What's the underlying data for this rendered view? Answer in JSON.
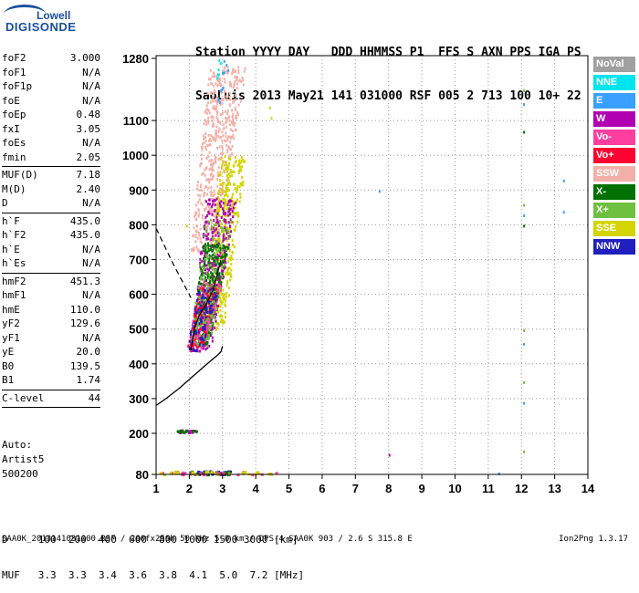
{
  "logo": {
    "line1": "Lowell",
    "line2": "DIGISONDE"
  },
  "header": {
    "row1": "Station YYYY DAY   DDD HHMMSS P1  FFS S AXN PPS IGA PS",
    "row2": "SaoLuis 2013 May21 141 031000 RSF 005 2 713 100 10+ 22"
  },
  "params": [
    {
      "k": "foF2",
      "v": "3.000"
    },
    {
      "k": "foF1",
      "v": "N/A"
    },
    {
      "k": "foF1p",
      "v": "N/A"
    },
    {
      "k": "foE",
      "v": "N/A"
    },
    {
      "k": "foEp",
      "v": "0.48"
    },
    {
      "k": "fxI",
      "v": "3.05"
    },
    {
      "k": "foEs",
      "v": "N/A"
    },
    {
      "k": "fmin",
      "v": "2.05"
    },
    {
      "sep": true
    },
    {
      "k": "MUF(D)",
      "v": "7.18"
    },
    {
      "k": "M(D)",
      "v": "2.40"
    },
    {
      "k": "D",
      "v": "N/A"
    },
    {
      "sep": true
    },
    {
      "k": "h`F",
      "v": "435.0"
    },
    {
      "k": "h`F2",
      "v": "435.0"
    },
    {
      "k": "h`E",
      "v": "N/A"
    },
    {
      "k": "h`Es",
      "v": "N/A"
    },
    {
      "sep": true
    },
    {
      "k": "hmF2",
      "v": "451.3"
    },
    {
      "k": "hmF1",
      "v": "N/A"
    },
    {
      "k": "hmE",
      "v": "110.0"
    },
    {
      "k": "yF2",
      "v": "129.6"
    },
    {
      "k": "yF1",
      "v": "N/A"
    },
    {
      "k": "yE",
      "v": "20.0"
    },
    {
      "k": "B0",
      "v": "139.5"
    },
    {
      "k": "B1",
      "v": "1.74"
    },
    {
      "sep": true
    },
    {
      "k": "C-level",
      "v": "44"
    },
    {
      "sep": true
    }
  ],
  "auto": {
    "line1": "Auto:",
    "line2": "Artist5",
    "line3": "500200"
  },
  "muf_table": {
    "row1": "D     100  200  400  600  800 1000 1500 3000 [km]",
    "row2": "MUF   3.3  3.3  3.4  3.6  3.8  4.1  5.0  7.2 [MHz]"
  },
  "footer": "SAA0K_2013141031000.RSF / 260fx256h 50 kHz 5.0 km / DPS-4 SAA0K 903 / 2.6 S 315.8 E",
  "version": "Ion2Png 1.3.17",
  "legend": [
    {
      "label": "NoVal",
      "color": "#a0a0a0"
    },
    {
      "label": "NNE",
      "color": "#00e5ee"
    },
    {
      "label": "E",
      "color": "#3aa0ff"
    },
    {
      "label": "W",
      "color": "#b000b0"
    },
    {
      "label": "Vo-",
      "color": "#ff3fa0"
    },
    {
      "label": "Vo+",
      "color": "#ff0030"
    },
    {
      "label": "SSW",
      "color": "#f4b0a8"
    },
    {
      "label": "X-",
      "color": "#007000"
    },
    {
      "label": "X+",
      "color": "#70c040"
    },
    {
      "label": "SSE",
      "color": "#d4d400"
    },
    {
      "label": "NNW",
      "color": "#2020c0"
    }
  ],
  "chart_data": {
    "type": "scatter",
    "title": "",
    "xlabel": "",
    "ylabel": "",
    "xlim": [
      1,
      14
    ],
    "ylim": [
      80,
      1280
    ],
    "x_ticks": [
      1,
      2,
      3,
      4,
      5,
      6,
      7,
      8,
      9,
      10,
      11,
      12,
      13,
      14
    ],
    "y_ticks": [
      80,
      200,
      300,
      400,
      500,
      600,
      700,
      800,
      900,
      1000,
      1100,
      1280
    ],
    "profile_curve": [
      [
        1.0,
        280
      ],
      [
        1.3,
        300
      ],
      [
        1.7,
        330
      ],
      [
        2.0,
        355
      ],
      [
        2.3,
        380
      ],
      [
        2.6,
        405
      ],
      [
        2.85,
        425
      ],
      [
        2.95,
        435
      ],
      [
        3.0,
        451
      ]
    ],
    "dashed_line": [
      [
        1.0,
        790
      ],
      [
        1.5,
        690
      ],
      [
        2.05,
        590
      ]
    ],
    "trace_curve": [
      [
        2.05,
        440
      ],
      [
        2.15,
        500
      ],
      [
        2.3,
        540
      ],
      [
        2.5,
        570
      ],
      [
        2.7,
        610
      ],
      [
        2.85,
        660
      ],
      [
        2.95,
        700
      ]
    ],
    "echo_clusters": [
      {
        "series": "SSW",
        "x": [
          2.0,
          3.7
        ],
        "y": [
          720,
          1260
        ],
        "count": 480
      },
      {
        "series": "SSE",
        "x": [
          2.5,
          3.7
        ],
        "y": [
          500,
          1000
        ],
        "count": 380
      },
      {
        "series": "W",
        "x": [
          2.0,
          3.4
        ],
        "y": [
          440,
          880
        ],
        "count": 360
      },
      {
        "series": "X-",
        "x": [
          2.0,
          3.2
        ],
        "y": [
          450,
          750
        ],
        "count": 300
      },
      {
        "series": "Vo-",
        "x": [
          1.9,
          3.0
        ],
        "y": [
          440,
          640
        ],
        "count": 180
      },
      {
        "series": "Vo+",
        "x": [
          1.9,
          2.9
        ],
        "y": [
          440,
          620
        ],
        "count": 110
      },
      {
        "series": "X+",
        "x": [
          2.0,
          3.3
        ],
        "y": [
          450,
          820
        ],
        "count": 150
      },
      {
        "series": "NNW",
        "x": [
          1.9,
          2.9
        ],
        "y": [
          440,
          620
        ],
        "count": 90
      },
      {
        "series": "E",
        "x": [
          2.8,
          3.2
        ],
        "y": [
          1150,
          1280
        ],
        "count": 12
      },
      {
        "series": "NNE",
        "x": [
          2.8,
          3.0
        ],
        "y": [
          1220,
          1280
        ],
        "count": 6
      }
    ],
    "low_echoes": [
      {
        "series": "NNW",
        "x": [
          2.0,
          3.2
        ],
        "y": [
          82,
          92
        ],
        "count": 40
      },
      {
        "series": "X-",
        "x": [
          2.0,
          3.2
        ],
        "y": [
          82,
          92
        ],
        "count": 20
      },
      {
        "series": "Vo-",
        "x": [
          1.1,
          4.6
        ],
        "y": [
          82,
          92
        ],
        "count": 25
      },
      {
        "series": "SSE",
        "x": [
          1.1,
          4.6
        ],
        "y": [
          82,
          92
        ],
        "count": 25
      },
      {
        "series": "W",
        "x": [
          1.6,
          2.2
        ],
        "y": [
          205,
          212
        ],
        "count": 10
      },
      {
        "series": "X-",
        "x": [
          1.6,
          2.2
        ],
        "y": [
          205,
          212
        ],
        "count": 10
      }
    ],
    "sparse_points": [
      {
        "x": 12.05,
        "y": 1190,
        "series": "X+"
      },
      {
        "x": 12.05,
        "y": 1150,
        "series": "E"
      },
      {
        "x": 12.05,
        "y": 1070,
        "series": "X-"
      },
      {
        "x": 12.05,
        "y": 860,
        "series": "X+"
      },
      {
        "x": 12.05,
        "y": 830,
        "series": "E"
      },
      {
        "x": 12.05,
        "y": 800,
        "series": "X-"
      },
      {
        "x": 12.05,
        "y": 500,
        "series": "X+"
      },
      {
        "x": 12.05,
        "y": 460,
        "series": "E"
      },
      {
        "x": 12.05,
        "y": 350,
        "series": "X+"
      },
      {
        "x": 12.05,
        "y": 290,
        "series": "E"
      },
      {
        "x": 12.05,
        "y": 150,
        "series": "X+"
      },
      {
        "x": 13.25,
        "y": 930,
        "series": "E"
      },
      {
        "x": 13.25,
        "y": 840,
        "series": "E"
      },
      {
        "x": 7.7,
        "y": 900,
        "series": "E"
      },
      {
        "x": 8.0,
        "y": 140,
        "series": "W"
      },
      {
        "x": 11.3,
        "y": 86,
        "series": "E"
      },
      {
        "x": 4.4,
        "y": 1140,
        "series": "SSE"
      },
      {
        "x": 4.45,
        "y": 1110,
        "series": "SSE"
      },
      {
        "x": 1.9,
        "y": 800,
        "series": "SSE"
      }
    ]
  }
}
